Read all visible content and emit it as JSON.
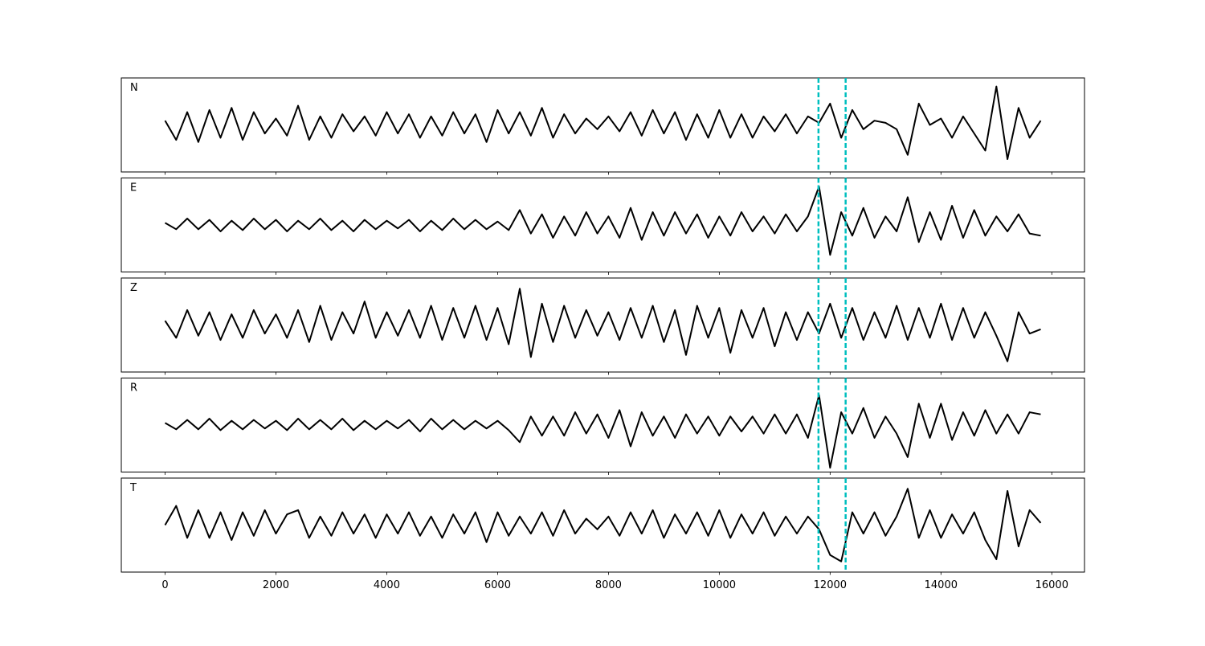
{
  "chart_data": {
    "type": "line",
    "color": "#000000",
    "vline_color": "#00bfbf",
    "x": [
      0,
      200,
      400,
      600,
      800,
      1000,
      1200,
      1400,
      1600,
      1800,
      2000,
      2200,
      2400,
      2600,
      2800,
      3000,
      3200,
      3400,
      3600,
      3800,
      4000,
      4200,
      4400,
      4600,
      4800,
      5000,
      5200,
      5400,
      5600,
      5800,
      6000,
      6200,
      6400,
      6600,
      6800,
      7000,
      7200,
      7400,
      7600,
      7800,
      8000,
      8200,
      8400,
      8600,
      8800,
      9000,
      9200,
      9400,
      9600,
      9800,
      10000,
      10200,
      10400,
      10600,
      10800,
      11000,
      11200,
      11400,
      11600,
      11800,
      12000,
      12200,
      12400,
      12600,
      12800,
      13000,
      13200,
      13400,
      13600,
      13800,
      14000,
      14200,
      14400,
      14600,
      14800,
      15000,
      15200,
      15400,
      15600,
      15800
    ],
    "xlim": [
      -790,
      16590
    ],
    "xticks": [
      0,
      2000,
      4000,
      6000,
      8000,
      10000,
      12000,
      14000,
      16000
    ],
    "ylim": [
      -1.1,
      1.1
    ],
    "vlines": [
      11790,
      12280
    ],
    "panels": [
      {
        "label": "N",
        "values": [
          0.1,
          -0.35,
          0.3,
          -0.4,
          0.35,
          -0.3,
          0.4,
          -0.35,
          0.3,
          -0.2,
          0.15,
          -0.25,
          0.45,
          -0.35,
          0.2,
          -0.3,
          0.25,
          -0.15,
          0.2,
          -0.25,
          0.3,
          -0.2,
          0.25,
          -0.3,
          0.2,
          -0.25,
          0.3,
          -0.2,
          0.25,
          -0.4,
          0.35,
          -0.2,
          0.3,
          -0.25,
          0.4,
          -0.3,
          0.25,
          -0.2,
          0.15,
          -0.1,
          0.2,
          -0.15,
          0.3,
          -0.25,
          0.35,
          -0.2,
          0.3,
          -0.35,
          0.25,
          -0.3,
          0.35,
          -0.3,
          0.25,
          -0.3,
          0.2,
          -0.15,
          0.25,
          -0.2,
          0.2,
          0.05,
          0.5,
          -0.3,
          0.35,
          -0.1,
          0.1,
          0.05,
          -0.1,
          -0.7,
          0.5,
          0.0,
          0.15,
          -0.3,
          0.2,
          -0.2,
          -0.6,
          0.9,
          -0.8,
          0.4,
          -0.3,
          0.1
        ]
      },
      {
        "label": "E",
        "values": [
          0.05,
          -0.1,
          0.15,
          -0.1,
          0.12,
          -0.15,
          0.1,
          -0.12,
          0.15,
          -0.1,
          0.12,
          -0.15,
          0.1,
          -0.1,
          0.15,
          -0.12,
          0.1,
          -0.15,
          0.12,
          -0.1,
          0.1,
          -0.08,
          0.12,
          -0.15,
          0.1,
          -0.12,
          0.15,
          -0.1,
          0.12,
          -0.1,
          0.08,
          -0.12,
          0.35,
          -0.2,
          0.25,
          -0.3,
          0.2,
          -0.25,
          0.3,
          -0.2,
          0.2,
          -0.3,
          0.4,
          -0.35,
          0.3,
          -0.25,
          0.3,
          -0.2,
          0.25,
          -0.3,
          0.2,
          -0.25,
          0.3,
          -0.15,
          0.2,
          -0.2,
          0.25,
          -0.15,
          0.2,
          0.9,
          -0.7,
          0.3,
          -0.25,
          0.4,
          -0.3,
          0.2,
          -0.15,
          0.65,
          -0.4,
          0.3,
          -0.35,
          0.45,
          -0.3,
          0.35,
          -0.25,
          0.2,
          -0.15,
          0.25,
          -0.2,
          -0.25
        ]
      },
      {
        "label": "Z",
        "values": [
          0.1,
          -0.3,
          0.35,
          -0.25,
          0.3,
          -0.35,
          0.25,
          -0.3,
          0.35,
          -0.2,
          0.25,
          -0.3,
          0.35,
          -0.4,
          0.45,
          -0.35,
          0.3,
          -0.2,
          0.55,
          -0.3,
          0.3,
          -0.25,
          0.35,
          -0.3,
          0.45,
          -0.35,
          0.4,
          -0.3,
          0.45,
          -0.35,
          0.4,
          -0.45,
          0.85,
          -0.75,
          0.5,
          -0.4,
          0.45,
          -0.3,
          0.35,
          -0.25,
          0.3,
          -0.35,
          0.4,
          -0.3,
          0.45,
          -0.4,
          0.35,
          -0.7,
          0.45,
          -0.3,
          0.4,
          -0.65,
          0.35,
          -0.3,
          0.4,
          -0.5,
          0.3,
          -0.35,
          0.3,
          -0.2,
          0.5,
          -0.3,
          0.4,
          -0.35,
          0.3,
          -0.3,
          0.45,
          -0.35,
          0.4,
          -0.3,
          0.5,
          -0.35,
          0.4,
          -0.3,
          0.3,
          -0.25,
          -0.85,
          0.3,
          -0.2,
          -0.1
        ]
      },
      {
        "label": "R",
        "values": [
          0.05,
          -0.1,
          0.12,
          -0.1,
          0.15,
          -0.12,
          0.1,
          -0.1,
          0.12,
          -0.08,
          0.1,
          -0.12,
          0.15,
          -0.1,
          0.12,
          -0.1,
          0.15,
          -0.12,
          0.1,
          -0.1,
          0.1,
          -0.08,
          0.12,
          -0.15,
          0.15,
          -0.1,
          0.12,
          -0.1,
          0.1,
          -0.08,
          0.1,
          -0.12,
          -0.4,
          0.2,
          -0.25,
          0.2,
          -0.25,
          0.3,
          -0.2,
          0.25,
          -0.3,
          0.35,
          -0.5,
          0.3,
          -0.25,
          0.2,
          -0.3,
          0.25,
          -0.2,
          0.2,
          -0.25,
          0.2,
          -0.15,
          0.2,
          -0.2,
          0.25,
          -0.2,
          0.25,
          -0.3,
          0.7,
          -1.0,
          0.3,
          -0.2,
          0.4,
          -0.3,
          0.2,
          -0.2,
          -0.75,
          0.5,
          -0.3,
          0.5,
          -0.35,
          0.3,
          -0.25,
          0.35,
          -0.2,
          0.25,
          -0.2,
          0.3,
          0.25
        ]
      },
      {
        "label": "T",
        "values": [
          0.0,
          0.45,
          -0.3,
          0.35,
          -0.3,
          0.3,
          -0.35,
          0.3,
          -0.25,
          0.35,
          -0.2,
          0.25,
          0.35,
          -0.3,
          0.2,
          -0.25,
          0.3,
          -0.2,
          0.25,
          -0.3,
          0.25,
          -0.2,
          0.3,
          -0.25,
          0.2,
          -0.3,
          0.25,
          -0.2,
          0.3,
          -0.4,
          0.3,
          -0.25,
          0.2,
          -0.2,
          0.3,
          -0.25,
          0.35,
          -0.2,
          0.15,
          -0.1,
          0.2,
          -0.25,
          0.3,
          -0.2,
          0.35,
          -0.3,
          0.25,
          -0.2,
          0.3,
          -0.25,
          0.35,
          -0.3,
          0.25,
          -0.2,
          0.3,
          -0.25,
          0.2,
          -0.2,
          0.2,
          -0.1,
          -0.7,
          -0.85,
          0.3,
          -0.2,
          0.3,
          -0.25,
          0.2,
          0.85,
          -0.3,
          0.35,
          -0.3,
          0.25,
          -0.2,
          0.3,
          -0.35,
          -0.8,
          0.8,
          -0.5,
          0.35,
          0.05
        ]
      }
    ]
  }
}
